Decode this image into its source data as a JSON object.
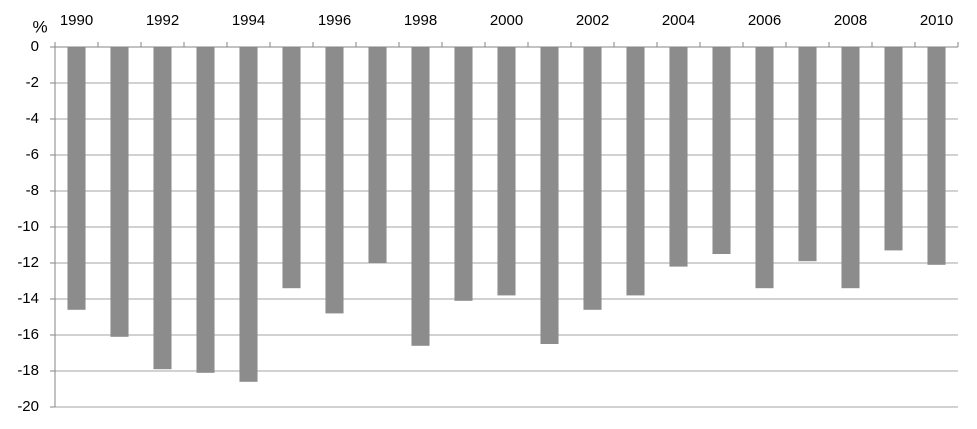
{
  "chart_data": {
    "type": "bar",
    "y_label": "%",
    "categories": [
      "1990",
      null,
      "1992",
      null,
      "1994",
      null,
      "1996",
      null,
      "1998",
      null,
      "2000",
      null,
      "2002",
      null,
      "2004",
      null,
      "2006",
      null,
      "2008",
      null,
      "2010"
    ],
    "values": [
      -14.6,
      -16.1,
      -17.9,
      -18.1,
      -18.6,
      -13.4,
      -14.8,
      -12.0,
      -16.6,
      -14.1,
      -13.8,
      -16.5,
      -14.6,
      -13.8,
      -12.2,
      -11.5,
      -13.4,
      -11.9,
      -13.4,
      -11.3,
      -12.1
    ],
    "color": "#8c8c8c",
    "ylim": [
      -20,
      0
    ],
    "yticks": [
      0,
      -2,
      -4,
      -6,
      -8,
      -10,
      -12,
      -14,
      -16,
      -18,
      -20
    ],
    "grid": true
  }
}
